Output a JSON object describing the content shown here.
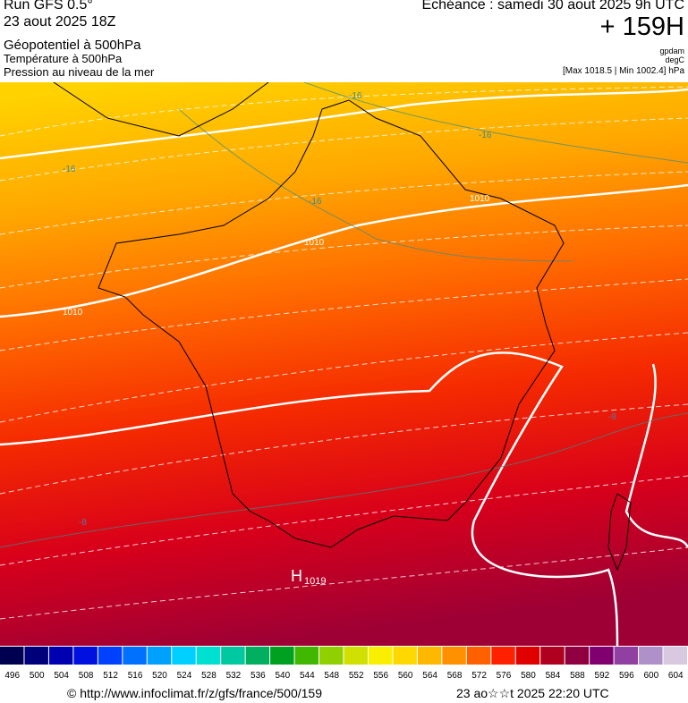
{
  "header": {
    "run": "Run GFS 0.5°",
    "date": "23 aout 2025 18Z",
    "field1": "Géopotentiel à 500hPa",
    "field2": "Température à 500hPa",
    "field3": "Pression au niveau de la mer",
    "forecast": "Echéance : samedi 30 aout 2025 9h UTC",
    "lead": "+ 159H",
    "unit1": "gpdam",
    "unit2": "degC",
    "range": "[Max 1018.5 | Min 1002.4] hPa"
  },
  "map": {
    "isobar_labels": [
      "1010",
      "1010",
      "1010"
    ],
    "isotherm_labels": [
      "-16",
      "-16",
      "-16",
      "-16",
      "-8",
      "-8"
    ],
    "high": "H",
    "high_value": "1019"
  },
  "colorbar": {
    "labels": [
      496,
      500,
      504,
      508,
      512,
      516,
      520,
      524,
      528,
      532,
      536,
      540,
      544,
      548,
      552,
      556,
      560,
      564,
      568,
      572,
      576,
      580,
      584,
      588,
      592,
      596,
      600,
      604
    ]
  },
  "footer": {
    "source": "© http://www.infoclimat.fr/z/gfs/france/500/159",
    "timestamp": "23 ao☆☆t 2025 22:20 UTC"
  }
}
